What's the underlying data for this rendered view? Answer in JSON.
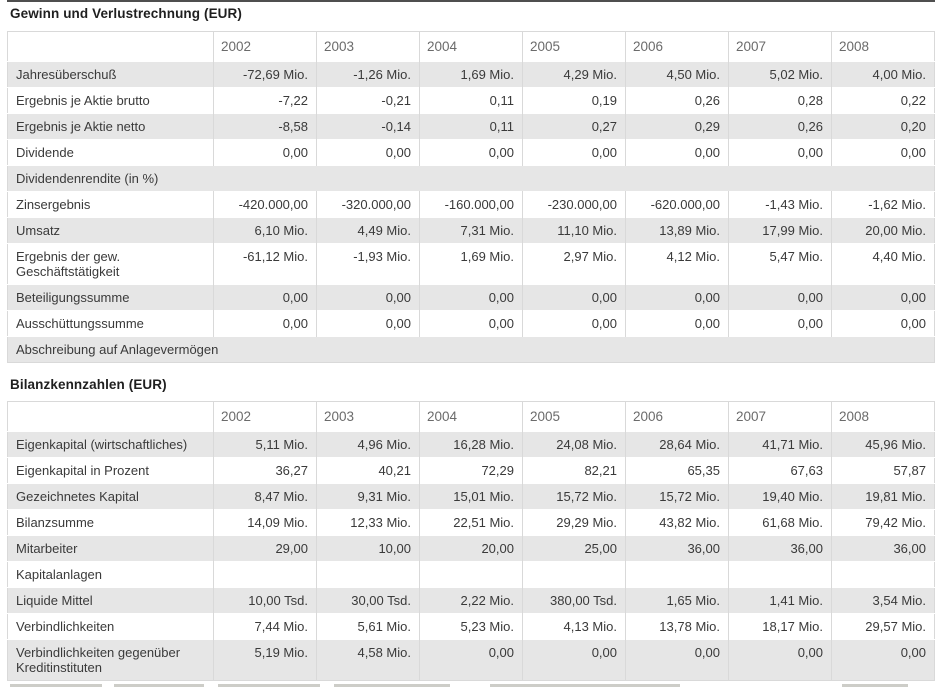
{
  "colors": {
    "stripe": "#e6e6e6",
    "border": "#d9d9d9",
    "top_rule": "#4f4f4f",
    "header_text": "#6b6b6b",
    "body_text": "#3a3a3a"
  },
  "sections": [
    {
      "title": "Gewinn und Verlustrechnung (EUR)",
      "years": [
        "2002",
        "2003",
        "2004",
        "2005",
        "2006",
        "2007",
        "2008"
      ],
      "rows": [
        {
          "type": "data",
          "label": "Jahresüberschuß",
          "values": [
            "-72,69 Mio.",
            "-1,26 Mio.",
            "1,69 Mio.",
            "4,29 Mio.",
            "4,50 Mio.",
            "5,02 Mio.",
            "4,00 Mio."
          ]
        },
        {
          "type": "data",
          "label": "Ergebnis je Aktie brutto",
          "values": [
            "-7,22",
            "-0,21",
            "0,11",
            "0,19",
            "0,26",
            "0,28",
            "0,22"
          ]
        },
        {
          "type": "data",
          "label": "Ergebnis je Aktie netto",
          "values": [
            "-8,58",
            "-0,14",
            "0,11",
            "0,27",
            "0,29",
            "0,26",
            "0,20"
          ]
        },
        {
          "type": "data",
          "label": "Dividende",
          "values": [
            "0,00",
            "0,00",
            "0,00",
            "0,00",
            "0,00",
            "0,00",
            "0,00"
          ]
        },
        {
          "type": "group",
          "label": "Dividendenrendite (in %)",
          "values": []
        },
        {
          "type": "data",
          "label": "Zinsergebnis",
          "values": [
            "-420.000,00",
            "-320.000,00",
            "-160.000,00",
            "-230.000,00",
            "-620.000,00",
            "-1,43 Mio.",
            "-1,62 Mio."
          ]
        },
        {
          "type": "data",
          "label": "Umsatz",
          "values": [
            "6,10 Mio.",
            "4,49 Mio.",
            "7,31 Mio.",
            "11,10 Mio.",
            "13,89 Mio.",
            "17,99 Mio.",
            "20,00 Mio."
          ]
        },
        {
          "type": "data",
          "label": "Ergebnis der gew. Geschäftstätigkeit",
          "values": [
            "-61,12 Mio.",
            "-1,93 Mio.",
            "1,69 Mio.",
            "2,97 Mio.",
            "4,12 Mio.",
            "5,47 Mio.",
            "4,40 Mio."
          ]
        },
        {
          "type": "data",
          "label": "Beteiligungssumme",
          "values": [
            "0,00",
            "0,00",
            "0,00",
            "0,00",
            "0,00",
            "0,00",
            "0,00"
          ]
        },
        {
          "type": "data",
          "label": "Ausschüttungssumme",
          "values": [
            "0,00",
            "0,00",
            "0,00",
            "0,00",
            "0,00",
            "0,00",
            "0,00"
          ]
        },
        {
          "type": "group",
          "label": "Abschreibung auf Anlagevermögen",
          "values": []
        }
      ]
    },
    {
      "title": "Bilanzkennzahlen (EUR)",
      "years": [
        "2002",
        "2003",
        "2004",
        "2005",
        "2006",
        "2007",
        "2008"
      ],
      "rows": [
        {
          "type": "data",
          "label": "Eigenkapital (wirtschaftliches)",
          "values": [
            "5,11 Mio.",
            "4,96 Mio.",
            "16,28 Mio.",
            "24,08 Mio.",
            "28,64 Mio.",
            "41,71 Mio.",
            "45,96 Mio."
          ]
        },
        {
          "type": "data",
          "label": "Eigenkapital in Prozent",
          "values": [
            "36,27",
            "40,21",
            "72,29",
            "82,21",
            "65,35",
            "67,63",
            "57,87"
          ]
        },
        {
          "type": "data",
          "label": "Gezeichnetes Kapital",
          "values": [
            "8,47 Mio.",
            "9,31 Mio.",
            "15,01 Mio.",
            "15,72 Mio.",
            "15,72 Mio.",
            "19,40 Mio.",
            "19,81 Mio."
          ]
        },
        {
          "type": "data",
          "label": "Bilanzsumme",
          "values": [
            "14,09 Mio.",
            "12,33 Mio.",
            "22,51 Mio.",
            "29,29 Mio.",
            "43,82 Mio.",
            "61,68 Mio.",
            "79,42 Mio."
          ]
        },
        {
          "type": "data",
          "label": "Mitarbeiter",
          "values": [
            "29,00",
            "10,00",
            "20,00",
            "25,00",
            "36,00",
            "36,00",
            "36,00"
          ]
        },
        {
          "type": "data",
          "label": "Kapitalanlagen",
          "values": [
            "",
            "",
            "",
            "",
            "",
            "",
            ""
          ]
        },
        {
          "type": "data",
          "label": "Liquide Mittel",
          "values": [
            "10,00 Tsd.",
            "30,00 Tsd.",
            "2,22 Mio.",
            "380,00 Tsd.",
            "1,65 Mio.",
            "1,41 Mio.",
            "3,54 Mio."
          ]
        },
        {
          "type": "data",
          "label": "Verbindlichkeiten",
          "values": [
            "7,44 Mio.",
            "5,61 Mio.",
            "5,23 Mio.",
            "4,13 Mio.",
            "13,78 Mio.",
            "18,17 Mio.",
            "29,57 Mio."
          ]
        },
        {
          "type": "data",
          "label": "Verbindlichkeiten gegenüber Kreditinstituten",
          "values": [
            "5,19 Mio.",
            "4,58 Mio.",
            "0,00",
            "0,00",
            "0,00",
            "0,00",
            "0,00"
          ]
        }
      ]
    }
  ]
}
